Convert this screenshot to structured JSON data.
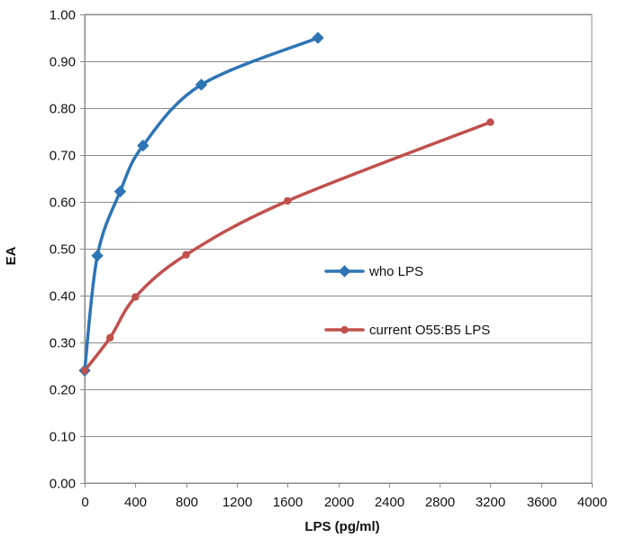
{
  "chart_data": {
    "type": "line",
    "title": "",
    "xlabel": "LPS (pg/ml)",
    "ylabel": "EA",
    "xlim": [
      0,
      4000
    ],
    "ylim": [
      0,
      1
    ],
    "x_ticks": [
      "0",
      "400",
      "800",
      "1200",
      "1600",
      "2000",
      "2400",
      "2800",
      "3200",
      "3600",
      "4000"
    ],
    "y_ticks": [
      "0.00",
      "0.10",
      "0.20",
      "0.30",
      "0.40",
      "0.50",
      "0.60",
      "0.70",
      "0.80",
      "0.90",
      "1.00"
    ],
    "x_tick_values": [
      0,
      400,
      800,
      1200,
      1600,
      2000,
      2400,
      2800,
      3200,
      3600,
      4000
    ],
    "y_tick_values": [
      0,
      0.1,
      0.2,
      0.3,
      0.4,
      0.5,
      0.6,
      0.7,
      0.8,
      0.9,
      1.0
    ],
    "grid": {
      "horizontal": true,
      "vertical": false
    },
    "legend_position": "right-middle",
    "series": [
      {
        "name": "who LPS",
        "color": "#2E75B6",
        "marker": "diamond",
        "x": [
          0,
          100,
          280,
          460,
          920,
          1840
        ],
        "y": [
          0.24,
          0.485,
          0.622,
          0.72,
          0.85,
          0.95
        ]
      },
      {
        "name": "current O55:B5 LPS",
        "color": "#C0504D",
        "marker": "circle",
        "x": [
          0,
          200,
          400,
          800,
          1600,
          3200
        ],
        "y": [
          0.24,
          0.31,
          0.397,
          0.487,
          0.602,
          0.77
        ]
      }
    ]
  }
}
